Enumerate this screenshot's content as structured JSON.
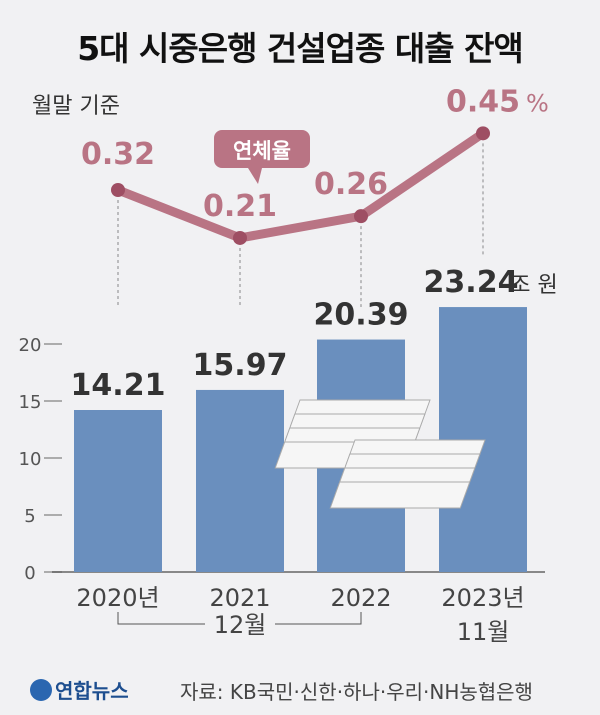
{
  "title": "5대 시중은행 건설업종 대출 잔액",
  "subtitle": "월말 기준",
  "chart_data": [
    {
      "type": "bar",
      "categories": [
        "2020년",
        "2021",
        "2022",
        "2023년"
      ],
      "category_sublabels": [
        "12월",
        "11월"
      ],
      "values": [
        14.21,
        15.97,
        20.39,
        23.24
      ],
      "value_labels": [
        "14.21",
        "15.97",
        "20.39",
        "23.24"
      ],
      "unit": "조 원",
      "yticks": [
        "0",
        "5",
        "10",
        "15",
        "20"
      ],
      "ylim": [
        0,
        25
      ],
      "color": "#6a8fbe"
    },
    {
      "type": "line",
      "name": "연체율",
      "values": [
        0.32,
        0.21,
        0.26,
        0.45
      ],
      "value_labels": [
        "0.32",
        "0.21",
        "0.26",
        "0.45"
      ],
      "unit": "%",
      "color": "#b97484"
    }
  ],
  "footer": {
    "logo": "연합뉴스",
    "source": "자료: KB국민·신한·하나·우리·NH농협은행"
  }
}
